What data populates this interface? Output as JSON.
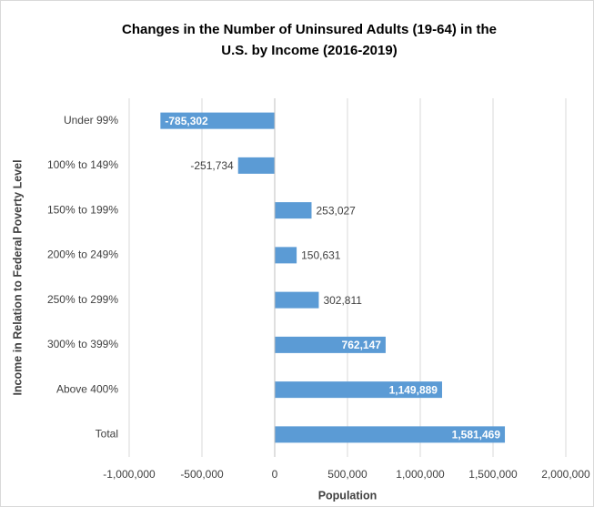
{
  "chart_data": {
    "type": "hbar",
    "title": [
      "Changes in the Number of Uninsured Adults (19-64) in the",
      "U.S. by Income (2016-2019)"
    ],
    "x_label": "Population",
    "y_label": "Income in Relation to Federal Poverty Level",
    "categories": [
      "Under 99%",
      "100% to 149%",
      "150% to 199%",
      "200% to 249%",
      "250% to 299%",
      "300% to 399%",
      "Above 400%",
      "Total"
    ],
    "values": [
      -785302,
      -251734,
      253027,
      150631,
      302811,
      762147,
      1149889,
      1581469
    ],
    "value_labels": [
      "-785,302",
      "-251,734",
      "253,027",
      "150,631",
      "302,811",
      "762,147",
      "1,149,889",
      "1,581,469"
    ],
    "color": "#5b9bd5",
    "xlim": [
      -1000000,
      2000000
    ],
    "xticks": [
      {
        "value": -1000000,
        "label": "-1,000,000"
      },
      {
        "value": -500000,
        "label": "-500,000"
      },
      0,
      {
        "value": 500000,
        "label": "500,000"
      },
      {
        "value": 1000000,
        "label": "1,000,000"
      },
      {
        "value": 1500000,
        "label": "1,500,000"
      },
      {
        "value": 2000000,
        "label": "2,000,000"
      }
    ],
    "grid": true
  }
}
